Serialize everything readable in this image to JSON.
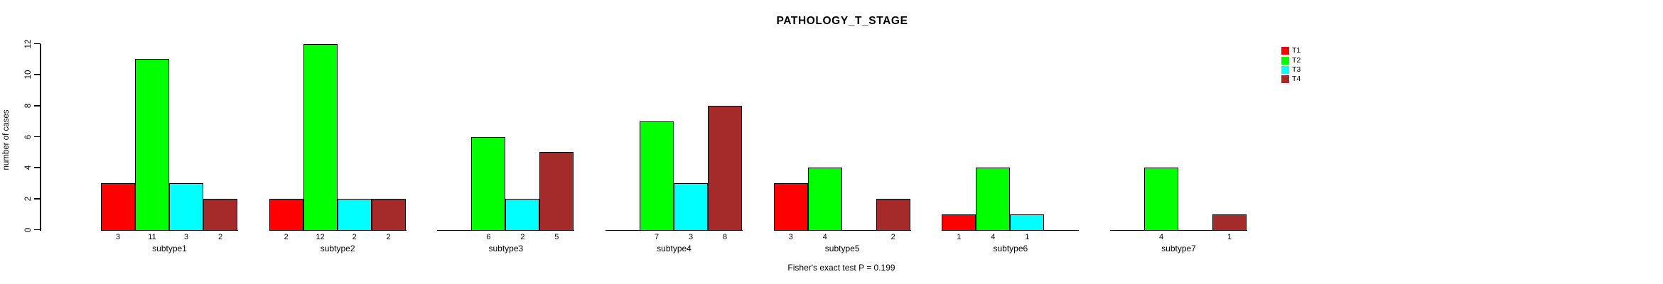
{
  "chart": {
    "background": "#ffffff",
    "axis_color": "#000000",
    "text_color": "#000000"
  },
  "chart_data": {
    "type": "bar",
    "title": "PATHOLOGY_T_STAGE",
    "xlabel": "",
    "ylabel": "number of cases",
    "annotation": "Fisher's exact test P = 0.199",
    "ylim": [
      0,
      12
    ],
    "yticks": [
      0,
      2,
      4,
      6,
      8,
      10,
      12
    ],
    "grid": false,
    "legend_position": "top-right",
    "bar_value_labels_shown": true,
    "categories": [
      "subtype1",
      "subtype2",
      "subtype3",
      "subtype4",
      "subtype5",
      "subtype6",
      "subtype7"
    ],
    "series": [
      {
        "name": "T1",
        "color": "#ff0000",
        "values": [
          3,
          2,
          null,
          null,
          3,
          1,
          null
        ]
      },
      {
        "name": "T2",
        "color": "#00ff00",
        "values": [
          11,
          12,
          6,
          7,
          4,
          4,
          4
        ]
      },
      {
        "name": "T3",
        "color": "#00ffff",
        "values": [
          3,
          2,
          2,
          3,
          null,
          1,
          null
        ]
      },
      {
        "name": "T4",
        "color": "#a52a2a",
        "values": [
          2,
          2,
          5,
          8,
          2,
          null,
          1
        ]
      }
    ]
  },
  "legend": {
    "items": [
      {
        "label": "T1",
        "color": "#ff0000"
      },
      {
        "label": "T2",
        "color": "#00ff00"
      },
      {
        "label": "T3",
        "color": "#00ffff"
      },
      {
        "label": "T4",
        "color": "#a52a2a"
      }
    ]
  }
}
